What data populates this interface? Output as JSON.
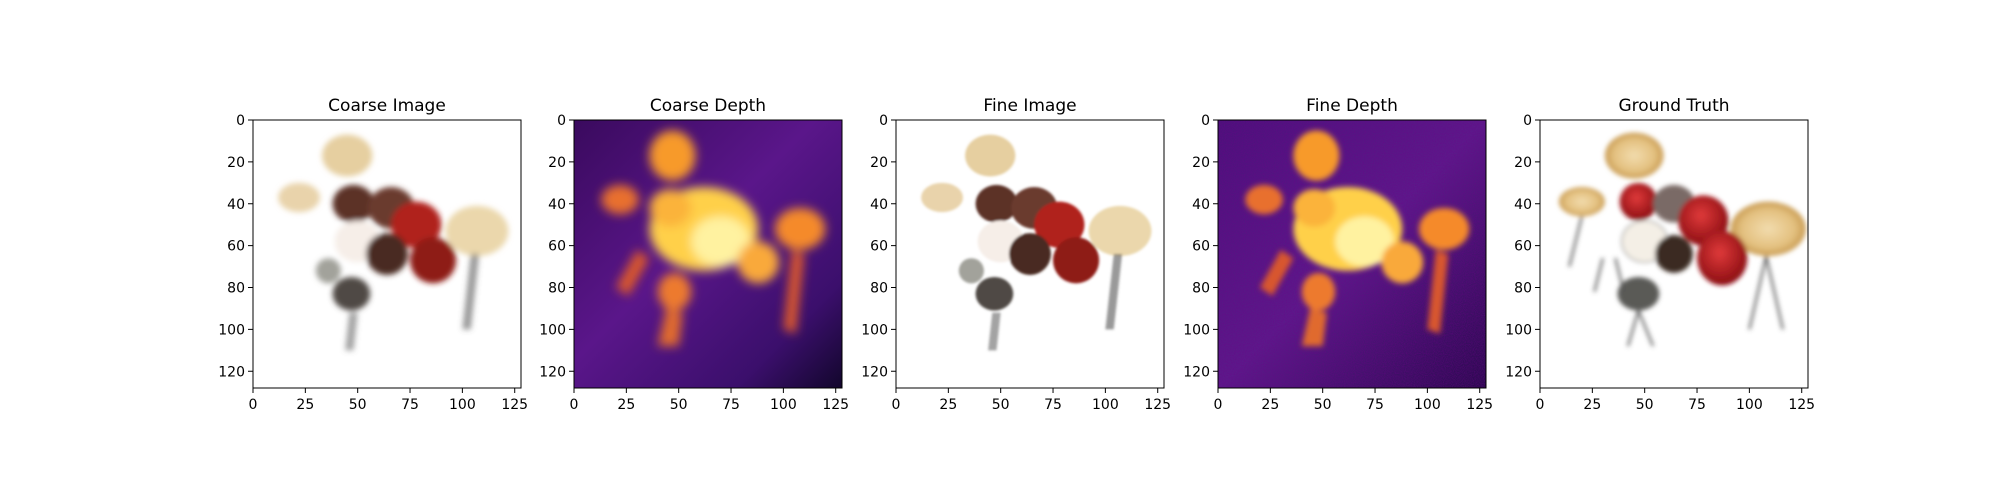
{
  "figure": {
    "layout": "1 row x 5 image panels",
    "background": "#ffffff"
  },
  "chart_data": [
    {
      "type": "heatmap",
      "title": "Coarse Image",
      "content": "rgb-render",
      "xlim": [
        0,
        128
      ],
      "ylim": [
        128,
        0
      ],
      "xticks": [
        0,
        25,
        50,
        75,
        100,
        125
      ],
      "yticks": [
        0,
        20,
        40,
        60,
        80,
        100,
        120
      ],
      "colormap": "rgb"
    },
    {
      "type": "heatmap",
      "title": "Coarse Depth",
      "content": "depth-map",
      "xlim": [
        0,
        128
      ],
      "ylim": [
        128,
        0
      ],
      "xticks": [
        0,
        25,
        50,
        75,
        100,
        125
      ],
      "yticks": [
        0,
        20,
        40,
        60,
        80,
        100,
        120
      ],
      "colormap": "inferno"
    },
    {
      "type": "heatmap",
      "title": "Fine Image",
      "content": "rgb-render",
      "xlim": [
        0,
        128
      ],
      "ylim": [
        128,
        0
      ],
      "xticks": [
        0,
        25,
        50,
        75,
        100,
        125
      ],
      "yticks": [
        0,
        20,
        40,
        60,
        80,
        100,
        120
      ],
      "colormap": "rgb"
    },
    {
      "type": "heatmap",
      "title": "Fine Depth",
      "content": "depth-map",
      "xlim": [
        0,
        128
      ],
      "ylim": [
        128,
        0
      ],
      "xticks": [
        0,
        25,
        50,
        75,
        100,
        125
      ],
      "yticks": [
        0,
        20,
        40,
        60,
        80,
        100,
        120
      ],
      "colormap": "inferno"
    },
    {
      "type": "heatmap",
      "title": "Ground Truth",
      "content": "rgb-render",
      "xlim": [
        0,
        128
      ],
      "ylim": [
        128,
        0
      ],
      "xticks": [
        0,
        25,
        50,
        75,
        100,
        125
      ],
      "yticks": [
        0,
        20,
        40,
        60,
        80,
        100,
        120
      ],
      "colormap": "rgb"
    }
  ]
}
